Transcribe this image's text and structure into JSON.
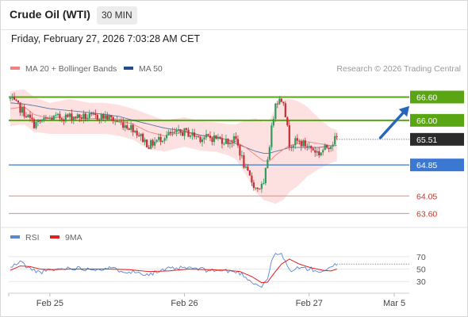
{
  "header": {
    "title": "Crude Oil (WTI)",
    "timeframe": "30 MIN"
  },
  "timestamp": "Friday, February 27, 2026 7:03:28 AM CET",
  "colors": {
    "resistance": "#5aa514",
    "pivot": "#3a78d2",
    "support": "#f08282",
    "bull": "#2e9a5e",
    "bear": "#c62c30",
    "band": "#fde1e1",
    "ma50": "#1f4f8b",
    "rsi": "#5b86d6",
    "rsi_ma": "#e02020",
    "arrow": "#2a66b8"
  },
  "chart_data": [
    {
      "type": "candlestick",
      "legend": [
        {
          "label": "MA 20 + Bollinger Bands",
          "color": "#f08282"
        },
        {
          "label": "MA 50",
          "color": "#1f4f8b"
        }
      ],
      "credit": "Research © 2026 Trading Central",
      "ylim": [
        63.3,
        67.1
      ],
      "x_ticks": [
        "Feb 25",
        "Feb 26",
        "Feb 27",
        "Mar 5"
      ],
      "x_tick_index": [
        20,
        88,
        151,
        194
      ],
      "levels": [
        {
          "value": 66.6,
          "label": "66.60",
          "kind": "resistance"
        },
        {
          "value": 66.0,
          "label": "66.00",
          "kind": "resistance"
        },
        {
          "value": 64.85,
          "label": "64.85",
          "kind": "pivot"
        },
        {
          "value": 64.05,
          "label": "64.05",
          "kind": "support"
        },
        {
          "value": 63.6,
          "label": "63.60",
          "kind": "support"
        }
      ],
      "last_price": {
        "value": 65.51,
        "label": "65.51"
      },
      "forecast": {
        "from_index": 187,
        "from_price": 65.55,
        "to_index": 200,
        "to_price": 66.28
      },
      "anchors": [
        {
          "i": 0,
          "c": 66.55,
          "m20": 66.3,
          "bw": 0.45,
          "m50": 66.45
        },
        {
          "i": 7,
          "c": 66.2,
          "m20": 66.35,
          "bw": 0.45,
          "m50": 66.42
        },
        {
          "i": 12,
          "c": 65.9,
          "m20": 66.15,
          "bw": 0.45,
          "m50": 66.38
        },
        {
          "i": 20,
          "c": 66.05,
          "m20": 66.05,
          "bw": 0.4,
          "m50": 66.3
        },
        {
          "i": 30,
          "c": 66.1,
          "m20": 66.1,
          "bw": 0.45,
          "m50": 66.25
        },
        {
          "i": 40,
          "c": 66.08,
          "m20": 66.05,
          "bw": 0.4,
          "m50": 66.2
        },
        {
          "i": 48,
          "c": 66.1,
          "m20": 66.05,
          "bw": 0.4,
          "m50": 66.15
        },
        {
          "i": 55,
          "c": 65.95,
          "m20": 66.0,
          "bw": 0.4,
          "m50": 66.1
        },
        {
          "i": 62,
          "c": 65.8,
          "m20": 65.9,
          "bw": 0.4,
          "m50": 66.0
        },
        {
          "i": 70,
          "c": 65.35,
          "m20": 65.7,
          "bw": 0.45,
          "m50": 65.9
        },
        {
          "i": 78,
          "c": 65.6,
          "m20": 65.6,
          "bw": 0.4,
          "m50": 65.8
        },
        {
          "i": 88,
          "c": 65.7,
          "m20": 65.7,
          "bw": 0.38,
          "m50": 65.72
        },
        {
          "i": 96,
          "c": 65.55,
          "m20": 65.6,
          "bw": 0.38,
          "m50": 65.62
        },
        {
          "i": 104,
          "c": 65.55,
          "m20": 65.57,
          "bw": 0.38,
          "m50": 65.55
        },
        {
          "i": 110,
          "c": 65.45,
          "m20": 65.5,
          "bw": 0.4,
          "m50": 65.5
        },
        {
          "i": 114,
          "c": 65.5,
          "m20": 65.45,
          "bw": 0.45,
          "m50": 65.4
        },
        {
          "i": 119,
          "c": 64.7,
          "m20": 65.3,
          "bw": 0.7,
          "m50": 65.3
        },
        {
          "i": 124,
          "c": 64.25,
          "m20": 65.1,
          "bw": 0.95,
          "m50": 65.2
        },
        {
          "i": 128,
          "c": 64.3,
          "m20": 64.95,
          "bw": 1.0,
          "m50": 65.15
        },
        {
          "i": 131,
          "c": 65.4,
          "m20": 64.95,
          "bw": 1.05,
          "m50": 65.15
        },
        {
          "i": 134,
          "c": 66.5,
          "m20": 65.1,
          "bw": 1.25,
          "m50": 65.2
        },
        {
          "i": 138,
          "c": 66.55,
          "m20": 65.25,
          "bw": 1.3,
          "m50": 65.25
        },
        {
          "i": 141,
          "c": 65.4,
          "m20": 65.35,
          "bw": 1.2,
          "m50": 65.3
        },
        {
          "i": 145,
          "c": 65.45,
          "m20": 65.4,
          "bw": 1.1,
          "m50": 65.3
        },
        {
          "i": 150,
          "c": 65.35,
          "m20": 65.45,
          "bw": 0.9,
          "m50": 65.3
        },
        {
          "i": 156,
          "c": 65.15,
          "m20": 65.4,
          "bw": 0.65,
          "m50": 65.3
        },
        {
          "i": 162,
          "c": 65.4,
          "m20": 65.35,
          "bw": 0.45,
          "m50": 65.35
        },
        {
          "i": 165,
          "c": 65.55,
          "m20": 65.35,
          "bw": 0.4,
          "m50": 65.35
        }
      ]
    },
    {
      "type": "line",
      "legend": [
        {
          "label": "RSI",
          "color": "#5b86d6"
        },
        {
          "label": "9MA",
          "color": "#e02020"
        }
      ],
      "ylim": [
        15,
        85
      ],
      "y_ticks": [
        70,
        50,
        30
      ],
      "y_tick_labels": [
        "70",
        "50",
        "30"
      ],
      "anchors": [
        {
          "i": 0,
          "rsi": 52,
          "ma": 48
        },
        {
          "i": 5,
          "rsi": 62,
          "ma": 55
        },
        {
          "i": 10,
          "rsi": 50,
          "ma": 54
        },
        {
          "i": 15,
          "rsi": 45,
          "ma": 50
        },
        {
          "i": 20,
          "rsi": 48,
          "ma": 49
        },
        {
          "i": 30,
          "rsi": 52,
          "ma": 50
        },
        {
          "i": 40,
          "rsi": 50,
          "ma": 50
        },
        {
          "i": 50,
          "rsi": 51,
          "ma": 50
        },
        {
          "i": 60,
          "rsi": 46,
          "ma": 49
        },
        {
          "i": 70,
          "rsi": 42,
          "ma": 46
        },
        {
          "i": 80,
          "rsi": 50,
          "ma": 47
        },
        {
          "i": 90,
          "rsi": 52,
          "ma": 50
        },
        {
          "i": 100,
          "rsi": 48,
          "ma": 49
        },
        {
          "i": 110,
          "rsi": 47,
          "ma": 48
        },
        {
          "i": 116,
          "rsi": 44,
          "ma": 46
        },
        {
          "i": 122,
          "rsi": 30,
          "ma": 38
        },
        {
          "i": 127,
          "rsi": 21,
          "ma": 28
        },
        {
          "i": 130,
          "rsi": 36,
          "ma": 29
        },
        {
          "i": 133,
          "rsi": 72,
          "ma": 42
        },
        {
          "i": 137,
          "rsi": 74,
          "ma": 58
        },
        {
          "i": 141,
          "rsi": 48,
          "ma": 66
        },
        {
          "i": 146,
          "rsi": 52,
          "ma": 58
        },
        {
          "i": 152,
          "rsi": 50,
          "ma": 52
        },
        {
          "i": 158,
          "rsi": 44,
          "ma": 48
        },
        {
          "i": 162,
          "rsi": 52,
          "ma": 47
        },
        {
          "i": 165,
          "rsi": 58,
          "ma": 50
        }
      ]
    }
  ]
}
